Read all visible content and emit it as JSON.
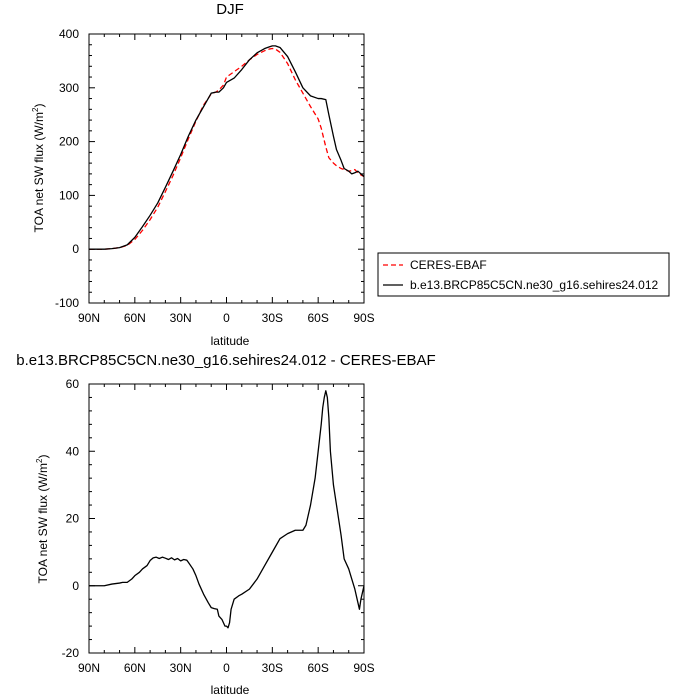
{
  "chart_data": [
    {
      "type": "line",
      "title": "DJF",
      "xlabel": "latitude",
      "ylabel": "TOA net SW flux (W/m",
      "ylabel_sup": "2",
      "ylabel_end": ")",
      "xlim": [
        -90,
        90
      ],
      "ylim": [
        -100,
        400
      ],
      "xticks": [
        {
          "value": -90,
          "label": "90N"
        },
        {
          "value": -60,
          "label": "60N"
        },
        {
          "value": -30,
          "label": "30N"
        },
        {
          "value": 0,
          "label": "0"
        },
        {
          "value": 30,
          "label": "30S"
        },
        {
          "value": 60,
          "label": "60S"
        },
        {
          "value": 90,
          "label": "90S"
        }
      ],
      "yticks": [
        {
          "value": -100,
          "label": "-100"
        },
        {
          "value": 0,
          "label": "0"
        },
        {
          "value": 100,
          "label": "100"
        },
        {
          "value": 200,
          "label": "200"
        },
        {
          "value": 300,
          "label": "300"
        },
        {
          "value": 400,
          "label": "400"
        }
      ],
      "legend": {
        "placement": "right"
      },
      "series": [
        {
          "name": "CERES-EBAF",
          "color": "#ff0000",
          "dash": true,
          "x": [
            -90,
            -80,
            -75,
            -70,
            -65,
            -60,
            -55,
            -50,
            -45,
            -40,
            -35,
            -30,
            -25,
            -20,
            -15,
            -12,
            -10,
            -7,
            -5,
            -2,
            0,
            5,
            10,
            15,
            20,
            25,
            28,
            30,
            32,
            35,
            40,
            45,
            50,
            55,
            60,
            62,
            65,
            67,
            70,
            72,
            75,
            77,
            80,
            82,
            84,
            86,
            88,
            90
          ],
          "y": [
            0,
            0,
            1,
            3,
            7,
            18,
            35,
            55,
            78,
            107,
            137,
            170,
            205,
            238,
            268,
            280,
            289,
            292,
            296,
            305,
            320,
            330,
            340,
            352,
            362,
            369,
            372,
            373,
            372,
            366,
            345,
            315,
            290,
            265,
            242,
            225,
            190,
            170,
            160,
            155,
            150,
            148,
            145,
            146,
            148,
            142,
            138,
            135
          ]
        },
        {
          "name": "b.e13.BRCP85C5CN.ne30_g16.sehires24.012",
          "color": "#000000",
          "dash": false,
          "x": [
            -90,
            -80,
            -75,
            -70,
            -65,
            -60,
            -55,
            -50,
            -45,
            -40,
            -35,
            -30,
            -25,
            -20,
            -15,
            -12,
            -10,
            -7,
            -5,
            -2,
            0,
            5,
            10,
            15,
            20,
            25,
            28,
            30,
            32,
            35,
            40,
            45,
            50,
            55,
            60,
            62,
            65,
            67,
            70,
            72,
            75,
            77,
            80,
            82,
            84,
            86,
            88,
            90
          ],
          "y": [
            0,
            0,
            1,
            3,
            8,
            22,
            42,
            63,
            86,
            115,
            145,
            176,
            210,
            240,
            265,
            280,
            290,
            292,
            292,
            300,
            310,
            318,
            334,
            352,
            365,
            373,
            376,
            378,
            378,
            375,
            358,
            330,
            300,
            285,
            280,
            280,
            278,
            250,
            210,
            185,
            165,
            150,
            145,
            140,
            142,
            145,
            140,
            135
          ]
        }
      ]
    },
    {
      "type": "line",
      "title": "b.e13.BRCP85C5CN.ne30_g16.sehires24.012 - CERES-EBAF",
      "xlabel": "latitude",
      "ylabel": "TOA net SW flux (W/m",
      "ylabel_sup": "2",
      "ylabel_end": ")",
      "xlim": [
        -90,
        90
      ],
      "ylim": [
        -20,
        60
      ],
      "xticks": [
        {
          "value": -90,
          "label": "90N"
        },
        {
          "value": -60,
          "label": "60N"
        },
        {
          "value": -30,
          "label": "30N"
        },
        {
          "value": 0,
          "label": "0"
        },
        {
          "value": 30,
          "label": "30S"
        },
        {
          "value": 60,
          "label": "60S"
        },
        {
          "value": 90,
          "label": "90S"
        }
      ],
      "yticks": [
        {
          "value": -20,
          "label": "-20"
        },
        {
          "value": 0,
          "label": "0"
        },
        {
          "value": 20,
          "label": "20"
        },
        {
          "value": 40,
          "label": "40"
        },
        {
          "value": 60,
          "label": "60"
        }
      ],
      "series": [
        {
          "color": "#000000",
          "dash": false,
          "x": [
            -90,
            -80,
            -75,
            -70,
            -68,
            -65,
            -62,
            -60,
            -57,
            -55,
            -52,
            -50,
            -48,
            -46,
            -44,
            -42,
            -40,
            -38,
            -36,
            -34,
            -32,
            -30,
            -28,
            -26,
            -25,
            -22,
            -20,
            -18,
            -15,
            -12,
            -10,
            -8,
            -6,
            -5,
            -3,
            -2,
            -1,
            0,
            1,
            2,
            3,
            5,
            8,
            10,
            15,
            20,
            25,
            30,
            35,
            40,
            45,
            50,
            52,
            55,
            58,
            60,
            62,
            63,
            64,
            65,
            66,
            67,
            68,
            70,
            72,
            75,
            77,
            80,
            82,
            84,
            86,
            87,
            88,
            90
          ],
          "y": [
            0,
            0,
            0.5,
            0.8,
            1,
            1,
            2,
            3,
            4,
            5,
            6,
            7.5,
            8.3,
            8.5,
            8.1,
            8.5,
            8.2,
            7.8,
            8.3,
            7.7,
            8.1,
            7.4,
            7.8,
            7.6,
            7,
            5,
            3,
            0.5,
            -2.5,
            -5,
            -6.5,
            -6.8,
            -7,
            -9,
            -10,
            -11,
            -12,
            -12,
            -12.5,
            -11,
            -7,
            -4,
            -3,
            -2.5,
            -1,
            2,
            6,
            10,
            14,
            15.5,
            16.5,
            16.5,
            18,
            24,
            32,
            40,
            48,
            53,
            56,
            58,
            56,
            50,
            40,
            30,
            24,
            15,
            8,
            5,
            2,
            -1,
            -5,
            -7,
            -4,
            0
          ]
        }
      ]
    }
  ]
}
